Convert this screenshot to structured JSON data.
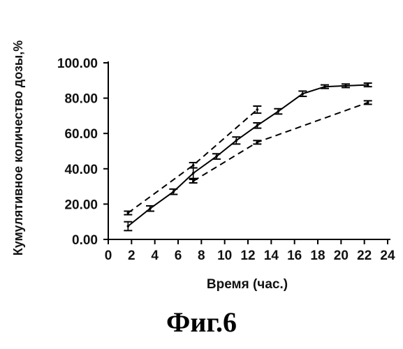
{
  "chart_data": {
    "type": "line",
    "xlabel": "Время (час.)",
    "ylabel": "Кумулятивное количество дозы,%",
    "xlim": [
      0,
      24
    ],
    "ylim": [
      0,
      100
    ],
    "x_ticks": [
      "0",
      "2",
      "4",
      "6",
      "8",
      "10",
      "12",
      "14",
      "16",
      "18",
      "20",
      "22",
      "24"
    ],
    "y_ticks": [
      "0.00",
      "20.00",
      "40.00",
      "60.00",
      "80.00",
      "100.00"
    ],
    "grid": false,
    "series": [
      {
        "style": "solid",
        "x": [
          1.7,
          3.6,
          5.6,
          7.3,
          9.3,
          11.0,
          12.8,
          14.6,
          16.7,
          18.6,
          20.4,
          22.3
        ],
        "y": [
          7.5,
          17.5,
          27.0,
          37.5,
          47.0,
          56.0,
          64.5,
          72.5,
          82.5,
          86.5,
          87.0,
          87.5
        ],
        "err": [
          2.5,
          1.5,
          1.5,
          3.0,
          1.5,
          2.0,
          1.5,
          1.5,
          1.5,
          1.0,
          1.0,
          1.0
        ]
      },
      {
        "style": "dashed",
        "x": [
          1.7,
          7.3,
          12.8
        ],
        "y": [
          15.0,
          42.0,
          73.5
        ],
        "err": [
          1.0,
          1.5,
          2.0
        ]
      },
      {
        "style": "dashed",
        "x": [
          7.3,
          12.8,
          22.3
        ],
        "y": [
          33.0,
          55.0,
          77.5
        ],
        "err": [
          1.0,
          1.0,
          1.0
        ]
      }
    ]
  },
  "figure": {
    "caption": "Фиг.6"
  }
}
